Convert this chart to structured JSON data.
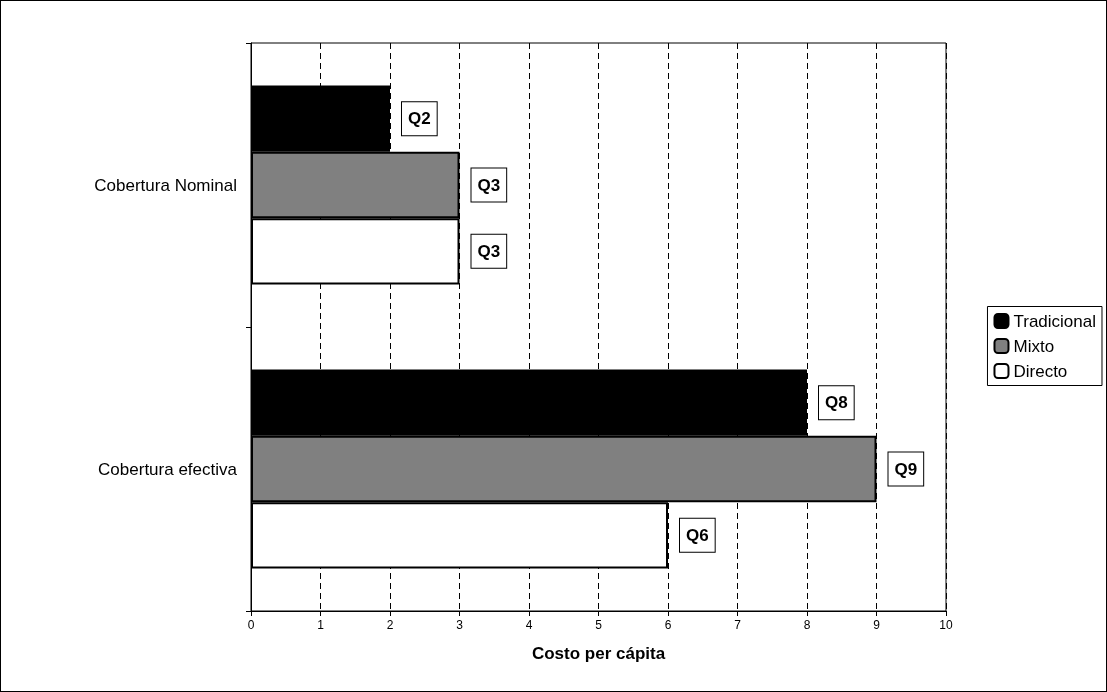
{
  "chart_data": {
    "type": "bar",
    "orientation": "horizontal",
    "xlabel": "Costo per cápita",
    "categories": [
      "Cobertura Nominal",
      "Cobertura efectiva"
    ],
    "series": [
      {
        "name": "Tradicional",
        "color": "#000000",
        "values": [
          2,
          8
        ],
        "value_labels": [
          "Q2",
          "Q8"
        ]
      },
      {
        "name": "Mixto",
        "color": "#808080",
        "values": [
          3,
          9
        ],
        "value_labels": [
          "Q3",
          "Q9"
        ]
      },
      {
        "name": "Directo",
        "color": "#ffffff",
        "values": [
          3,
          6
        ],
        "value_labels": [
          "Q3",
          "Q6"
        ]
      }
    ],
    "xlim": [
      0,
      10
    ],
    "xticks": [
      0,
      1,
      2,
      3,
      4,
      5,
      6,
      7,
      8,
      9,
      10
    ],
    "grid": "x",
    "legend": "right"
  }
}
